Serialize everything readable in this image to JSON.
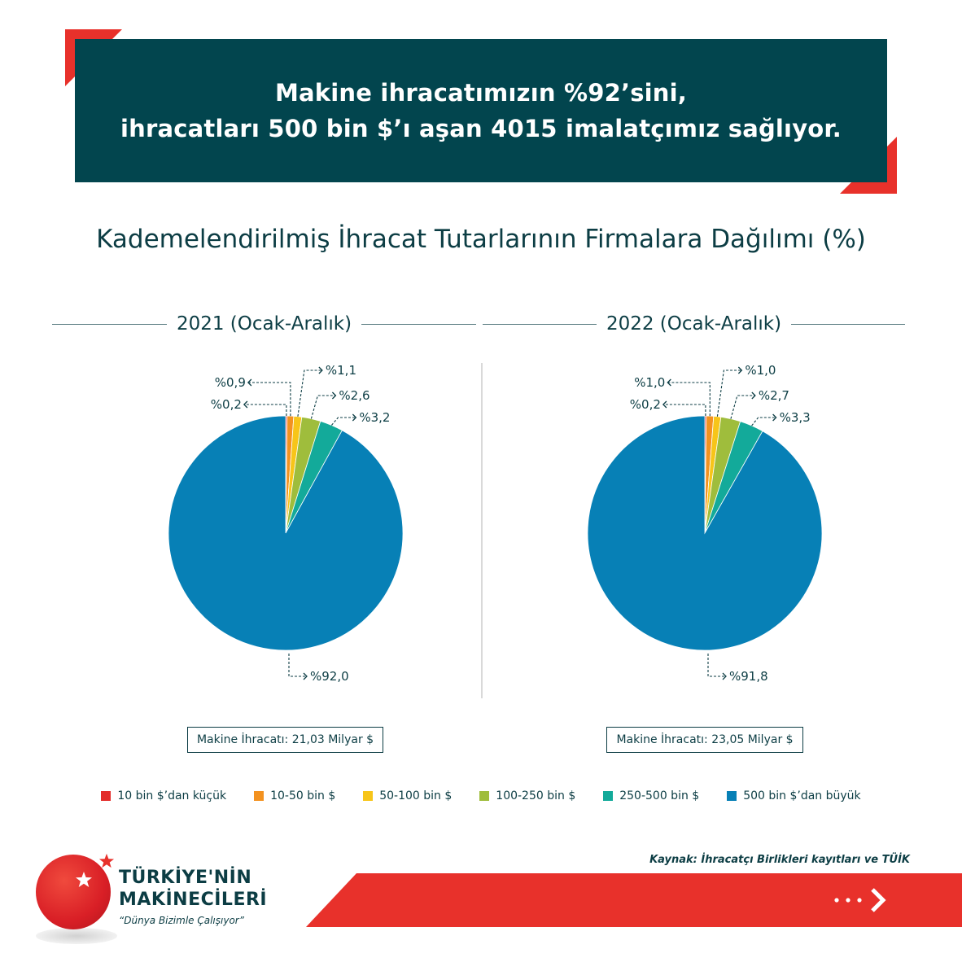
{
  "header": {
    "line1": "Makine ihracatımızın %92’sini,",
    "line2": "ihracatları 500 bin $’ı aşan 4015 imalatçımız sağlıyor."
  },
  "subtitle": "Kademelendirilmiş İhracat Tutarlarının Firmalara Dağılımı (%)",
  "chart_data": [
    {
      "type": "pie",
      "title": "2021 (Ocak-Aralık)",
      "categories": [
        "10 bin $’dan küçük",
        "10-50 bin $",
        "50-100 bin $",
        "100-250 bin $",
        "250-500 bin $",
        "500 bin $’dan büyük"
      ],
      "values": [
        0.2,
        0.9,
        1.1,
        2.6,
        3.2,
        92.0
      ],
      "labels": [
        "%0,2",
        "%0,9",
        "%1,1",
        "%2,6",
        "%3,2",
        "%92,0"
      ],
      "total": "Makine İhracatı: 21,03 Milyar $"
    },
    {
      "type": "pie",
      "title": "2022 (Ocak-Aralık)",
      "categories": [
        "10 bin $’dan küçük",
        "10-50 bin $",
        "50-100 bin $",
        "100-250 bin $",
        "250-500 bin $",
        "500 bin $’dan büyük"
      ],
      "values": [
        0.2,
        1.0,
        1.0,
        2.7,
        3.3,
        91.8
      ],
      "labels": [
        "%0,2",
        "%1,0",
        "%1,0",
        "%2,7",
        "%3,3",
        "%91,8"
      ],
      "total": "Makine İhracatı: 23,05 Milyar $"
    }
  ],
  "colors": [
    "#e32c2a",
    "#f39220",
    "#f7c519",
    "#9fbd3c",
    "#13aa9a",
    "#0780b6"
  ],
  "legend": [
    {
      "label": "10 bin $’dan küçük",
      "color": "#e32c2a"
    },
    {
      "label": "10-50 bin $",
      "color": "#f39220"
    },
    {
      "label": "50-100 bin $",
      "color": "#f7c519"
    },
    {
      "label": "100-250 bin $",
      "color": "#9fbd3c"
    },
    {
      "label": "250-500 bin $",
      "color": "#13aa9a"
    },
    {
      "label": "500 bin $’dan büyük",
      "color": "#0780b6"
    }
  ],
  "source": "Kaynak: İhracatçı Birlikleri kayıtları ve TÜİK",
  "logo": {
    "line1": "TÜRKİYE'NİN",
    "line2": "MAKİNECİLERİ",
    "slogan": "“Dünya Bizimle Çalışıyor”"
  },
  "icons": [
    "star-icon",
    "chevron-right-icon"
  ]
}
